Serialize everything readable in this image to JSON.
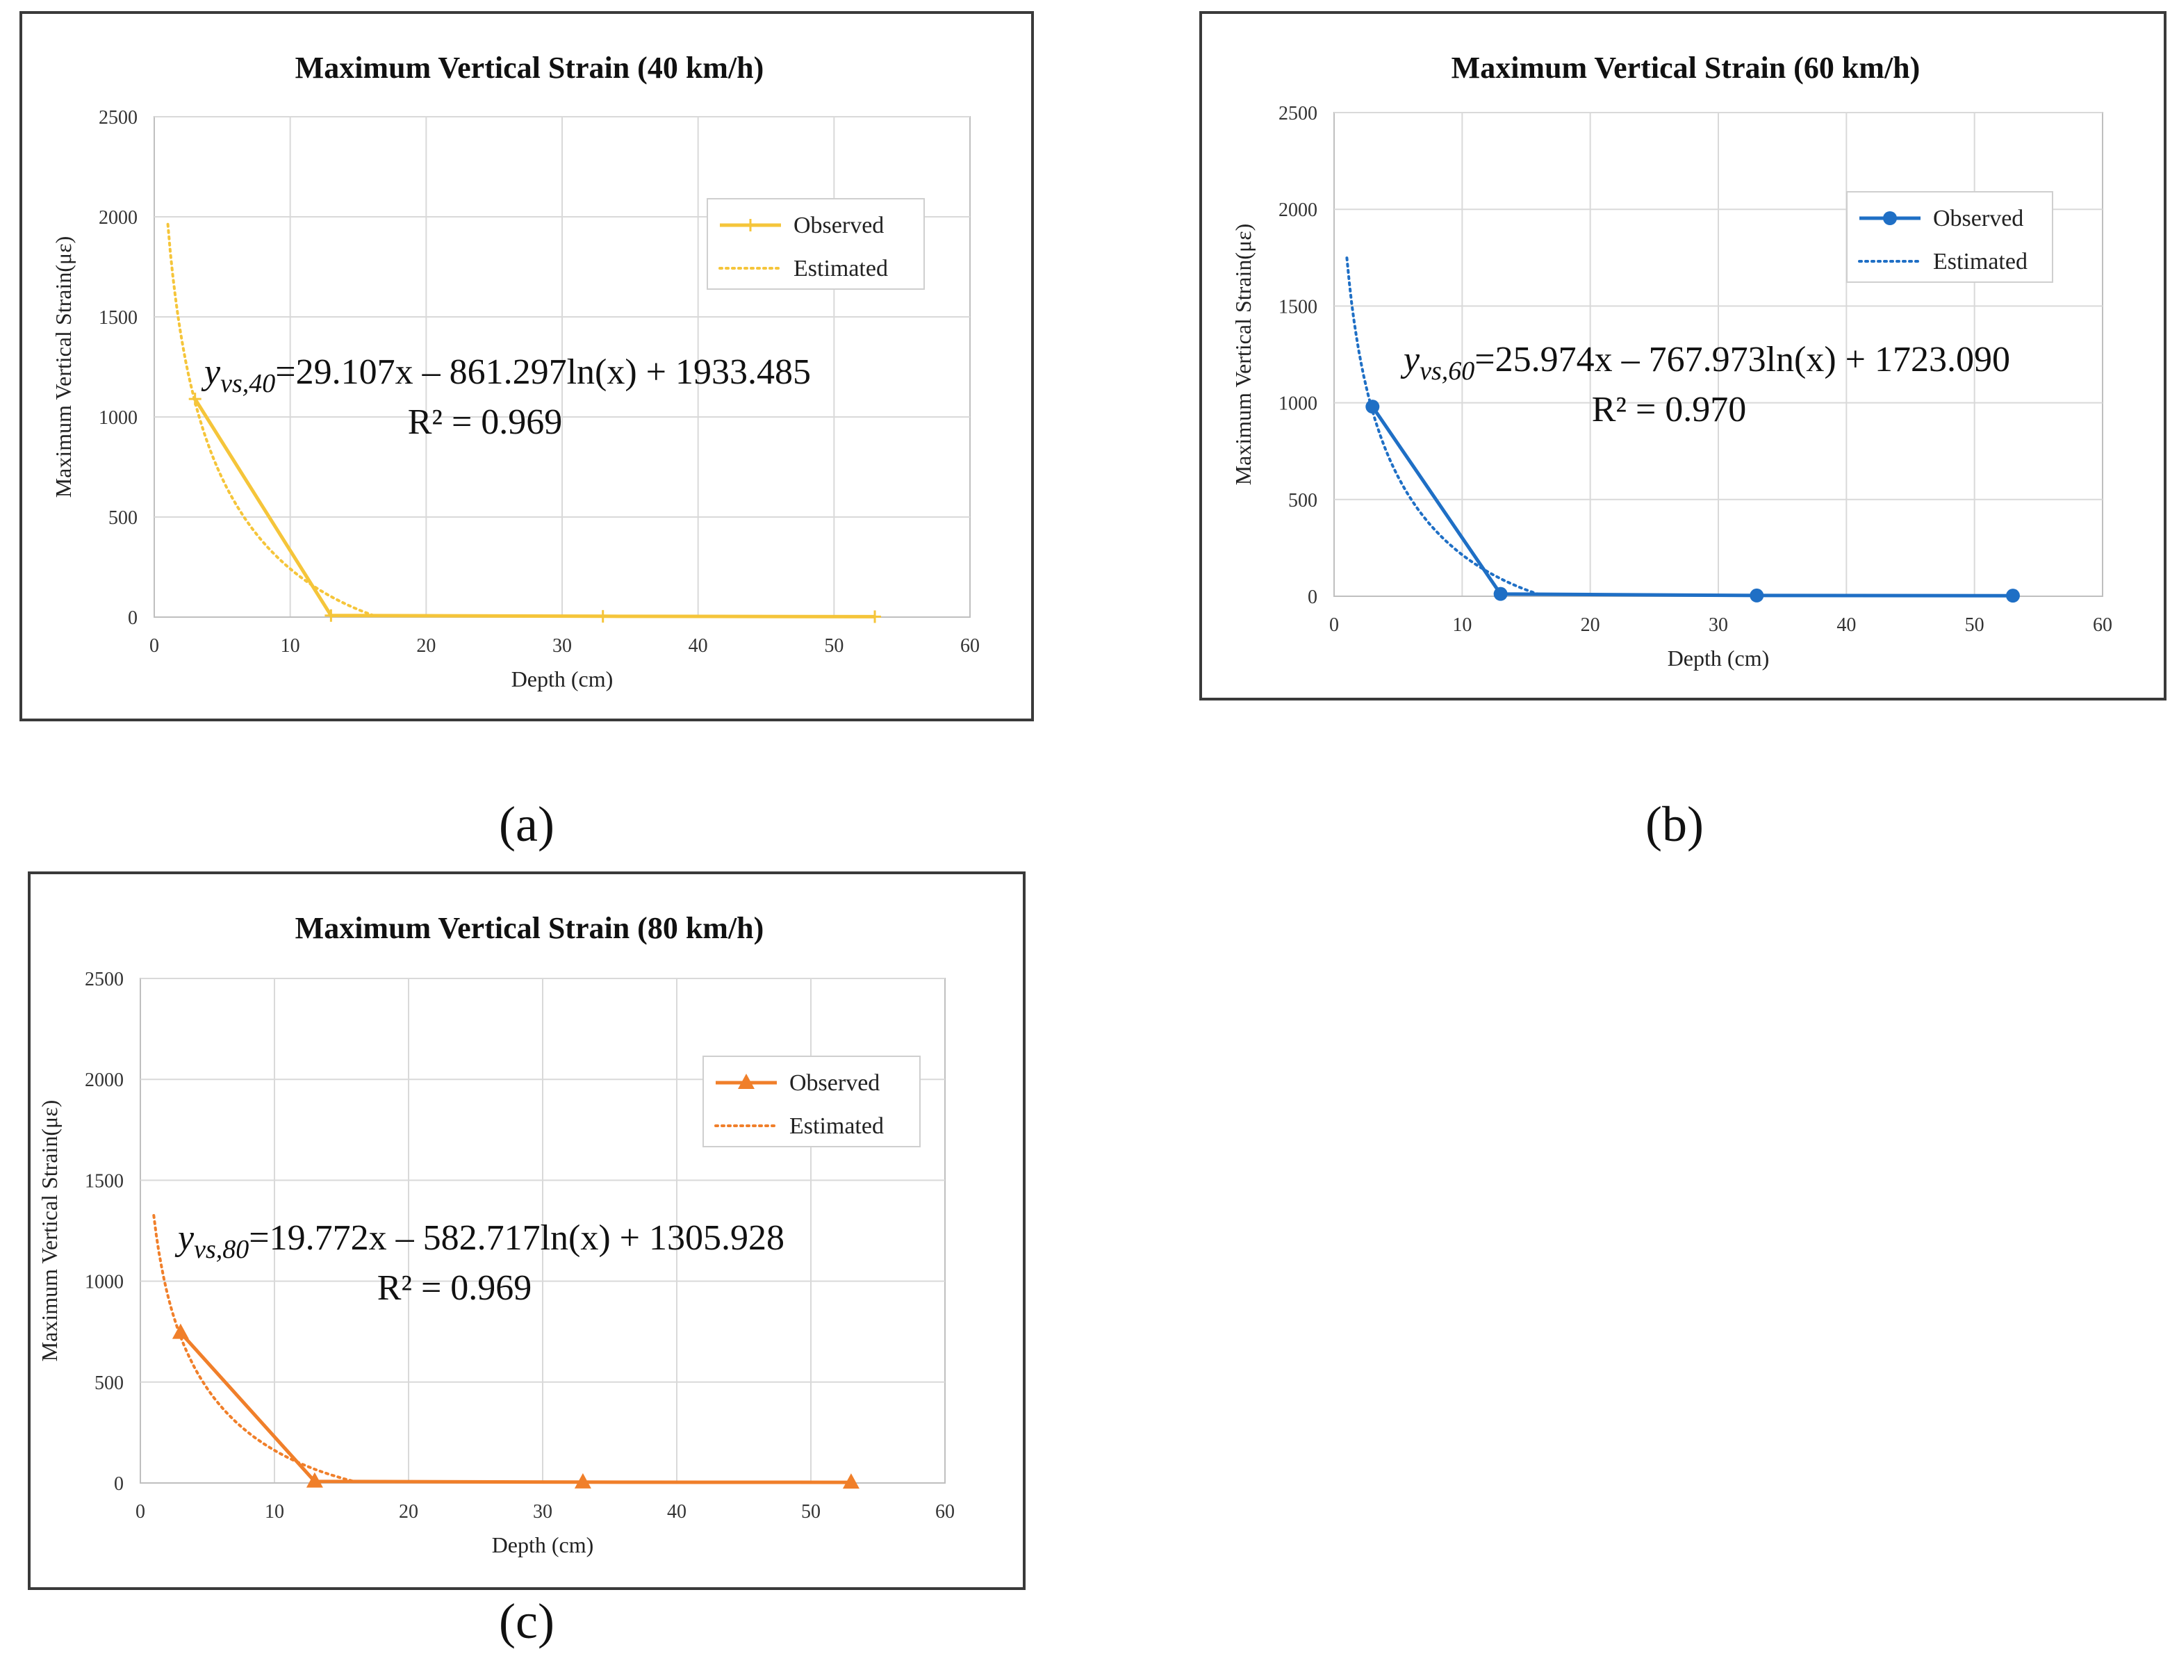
{
  "chart_data": [
    {
      "type": "line",
      "title": "Maximum Vertical Strain (40 km/h)",
      "xlabel": "Depth (cm)",
      "ylabel": "Maximum Vertical Strain(με)",
      "xlim": [
        0,
        60
      ],
      "ylim": [
        0,
        2500
      ],
      "xticks": [
        0,
        10,
        20,
        30,
        40,
        50,
        60
      ],
      "yticks": [
        0,
        500,
        1000,
        1500,
        2000,
        2500
      ],
      "grid": true,
      "legend_position": "top-right",
      "marker": "plus",
      "color": "#F5C53A",
      "series": [
        {
          "name": "Observed",
          "style": "solid",
          "x": [
            3,
            13,
            33,
            53
          ],
          "y": [
            1090,
            8,
            4,
            2
          ]
        },
        {
          "name": "Estimated",
          "style": "dotted",
          "fit": {
            "a": 29.107,
            "b": -861.297,
            "c": 1933.485
          },
          "x_range": [
            1,
            16
          ]
        }
      ],
      "equation": {
        "var": "y",
        "sub": "vs,40",
        "text": "=29.107x – 861.297ln(x) + 1933.485"
      },
      "r2_text": "R² = 0.969",
      "caption": "(a)"
    },
    {
      "type": "line",
      "title": "Maximum Vertical Strain (60 km/h)",
      "xlabel": "Depth (cm)",
      "ylabel": "Maximum Vertical Strain(με)",
      "xlim": [
        0,
        60
      ],
      "ylim": [
        0,
        2500
      ],
      "xticks": [
        0,
        10,
        20,
        30,
        40,
        50,
        60
      ],
      "yticks": [
        0,
        500,
        1000,
        1500,
        2000,
        2500
      ],
      "grid": true,
      "legend_position": "top-right",
      "marker": "circle",
      "color": "#1F6FC5",
      "series": [
        {
          "name": "Observed",
          "style": "solid",
          "x": [
            3,
            13,
            33,
            53
          ],
          "y": [
            980,
            12,
            4,
            3
          ]
        },
        {
          "name": "Estimated",
          "style": "dotted",
          "fit": {
            "a": 25.974,
            "b": -767.973,
            "c": 1723.09
          },
          "x_range": [
            1,
            16
          ]
        }
      ],
      "equation": {
        "var": "y",
        "sub": "vs,60",
        "text": "=25.974x – 767.973ln(x) + 1723.090"
      },
      "r2_text": "R² = 0.970",
      "caption": "(b)"
    },
    {
      "type": "line",
      "title": "Maximum Vertical Strain (80 km/h)",
      "xlabel": "Depth (cm)",
      "ylabel": "Maximum Vertical Strain(με)",
      "xlim": [
        0,
        60
      ],
      "ylim": [
        0,
        2500
      ],
      "xticks": [
        0,
        10,
        20,
        30,
        40,
        50,
        60
      ],
      "yticks": [
        0,
        500,
        1000,
        1500,
        2000,
        2500
      ],
      "grid": true,
      "legend_position": "top-right",
      "marker": "triangle",
      "color": "#F07F2A",
      "series": [
        {
          "name": "Observed",
          "style": "solid",
          "x": [
            3,
            13,
            33,
            53
          ],
          "y": [
            745,
            8,
            4,
            3
          ]
        },
        {
          "name": "Estimated",
          "style": "dotted",
          "fit": {
            "a": 19.772,
            "b": -582.717,
            "c": 1305.928
          },
          "x_range": [
            1,
            16
          ]
        }
      ],
      "equation": {
        "var": "y",
        "sub": "vs,80",
        "text": "=19.772x – 582.717ln(x) + 1305.928"
      },
      "r2_text": "R² = 0.969",
      "caption": "(c)"
    }
  ]
}
